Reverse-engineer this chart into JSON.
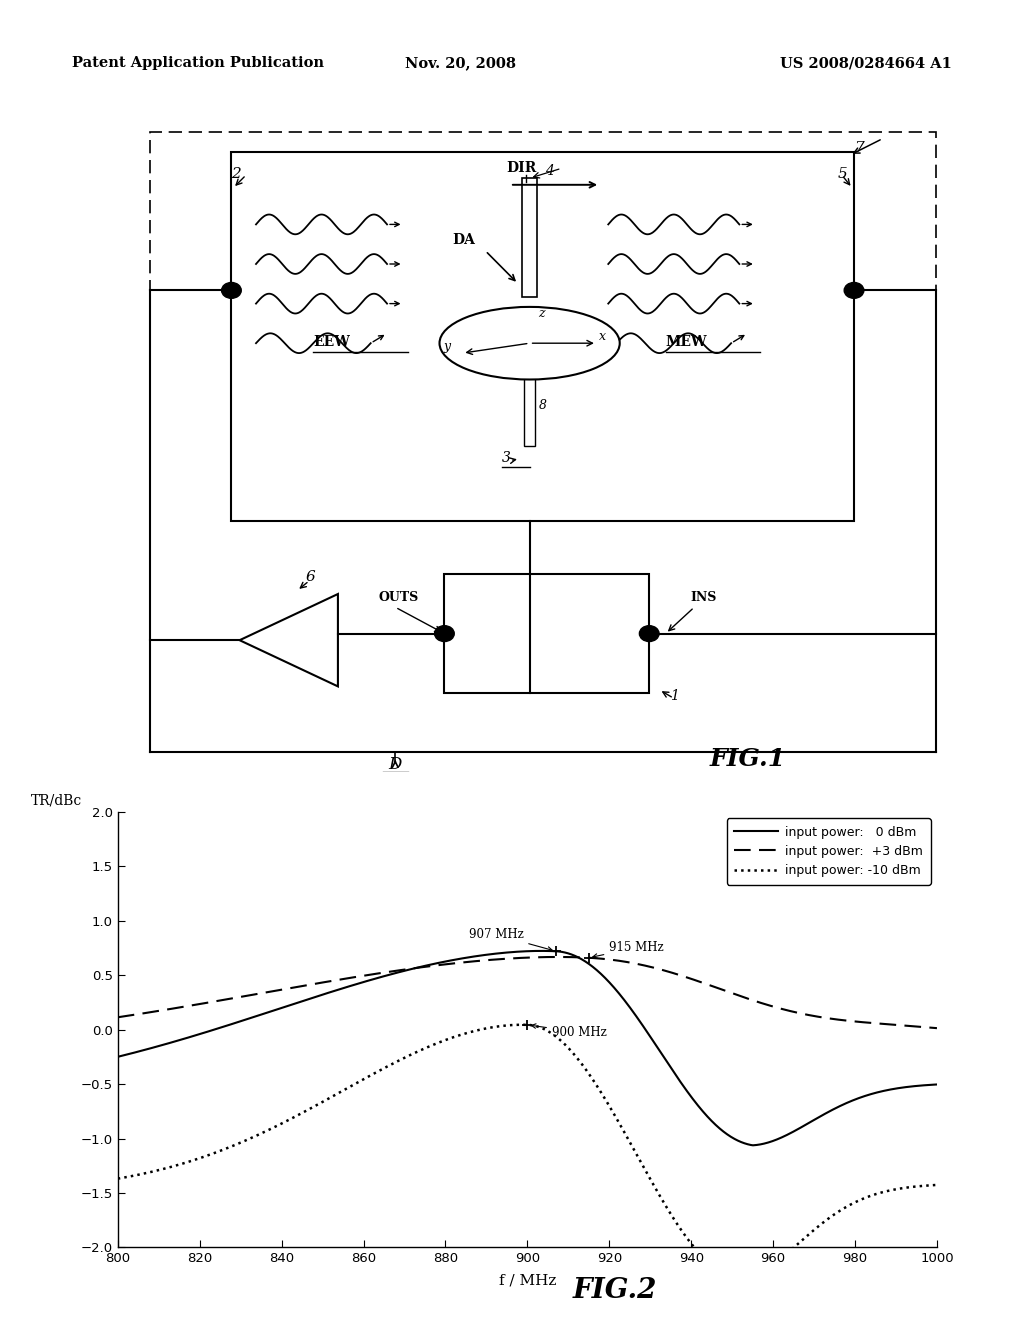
{
  "header_left": "Patent Application Publication",
  "header_center": "Nov. 20, 2008",
  "header_right": "US 2008/0284664 A1",
  "fig1_label": "FIG.1",
  "fig2_label": "FIG.2",
  "xlabel": "f / MHz",
  "ylabel": "TR/dBc",
  "xlim": [
    800,
    1000
  ],
  "ylim": [
    -2.0,
    2.0
  ],
  "xticks": [
    800,
    820,
    840,
    860,
    880,
    900,
    920,
    940,
    960,
    980,
    1000
  ],
  "yticks": [
    -2.0,
    -1.5,
    -1.0,
    -0.5,
    0.0,
    0.5,
    1.0,
    1.5,
    2.0
  ],
  "legend": [
    {
      "label": "input power:   0 dBm",
      "linestyle": "solid"
    },
    {
      "label": "input power:  +3 dBm",
      "linestyle": "dashed"
    },
    {
      "label": "input power: -10 dBm",
      "linestyle": "dotted"
    }
  ],
  "background_color": "#ffffff",
  "line_color": "#000000"
}
